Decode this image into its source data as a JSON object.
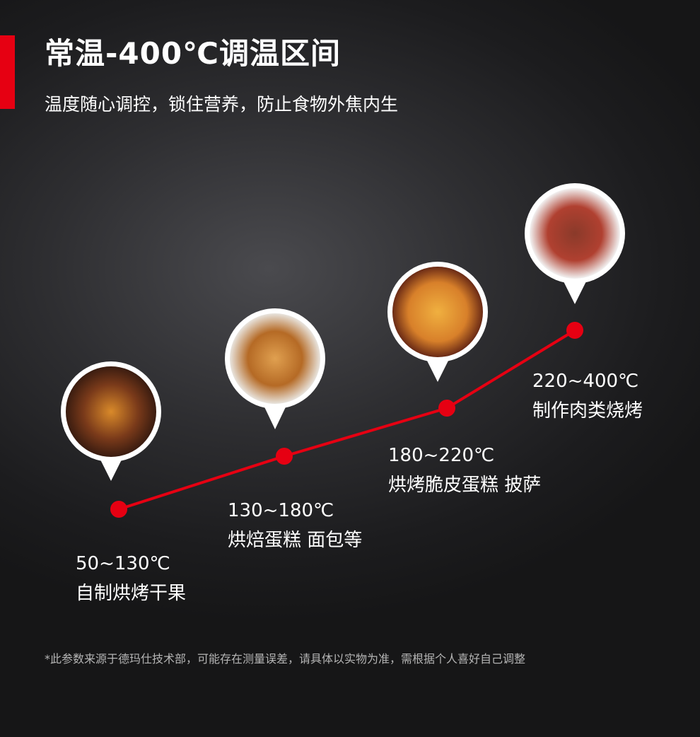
{
  "header": {
    "title": "常温-400℃调温区间",
    "subtitle": "温度随心调控，锁住营养，防止食物外焦内生"
  },
  "stages": [
    {
      "range": "50~130℃",
      "desc": "自制烘烤干果",
      "image": "dried-fruit-nuts"
    },
    {
      "range": "130~180℃",
      "desc": "烘焙蛋糕 面包等",
      "image": "croissants"
    },
    {
      "range": "180~220℃",
      "desc": "烘烤脆皮蛋糕 披萨",
      "image": "pizza"
    },
    {
      "range": "220~400℃",
      "desc": "制作肉类烧烤",
      "image": "steak"
    }
  ],
  "footnote": "*此参数来源于德玛仕技术部，可能存在测量误差，请具体以实物为准，需根据个人喜好自己调整",
  "colors": {
    "accent": "#e60012",
    "background": "#2a2a2c",
    "text": "#ffffff"
  }
}
